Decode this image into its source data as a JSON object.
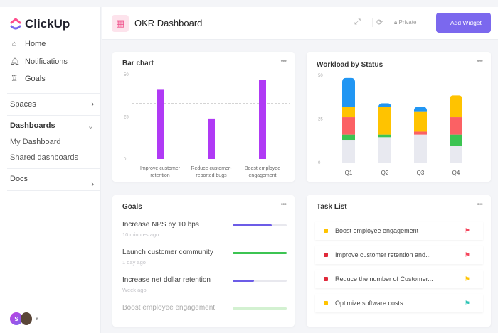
{
  "app": {
    "name": "ClickUp"
  },
  "sidebar": {
    "items": [
      {
        "label": "Home",
        "icon": "home-icon"
      },
      {
        "label": "Notifications",
        "icon": "bell-icon"
      },
      {
        "label": "Goals",
        "icon": "trophy-icon"
      }
    ],
    "spaces": "Spaces",
    "dashboards": "Dashboards",
    "my_dashboard": "My Dashboard",
    "shared_dashboards": "Shared dashboards",
    "docs": "Docs",
    "avatar_initial": "S"
  },
  "header": {
    "title": "OKR Dashboard",
    "privacy": "Private",
    "add_widget": "+ Add Widget",
    "accent": "#7b68ee"
  },
  "chart_data": [
    {
      "type": "bar",
      "title": "Bar chart",
      "categories": [
        "Improve customer retention",
        "Reduce customer-reported bugs",
        "Boost employee engagement"
      ],
      "category_lines": [
        [
          "Improve customer",
          "retention"
        ],
        [
          "Reduce customer-",
          "reported bugs"
        ],
        [
          "Boost employee",
          "engagement"
        ]
      ],
      "values": [
        41,
        24,
        47
      ],
      "ylim": [
        0,
        50
      ],
      "yticks": [
        "0",
        "25",
        "50"
      ],
      "reference_line": 33,
      "color": "#b03af5"
    },
    {
      "type": "bar",
      "stacked": true,
      "title": "Workload by Status",
      "categories": [
        "Q1",
        "Q2",
        "Q3",
        "Q4"
      ],
      "ylim": [
        0,
        50
      ],
      "yticks": [
        "0",
        "25",
        "50"
      ],
      "series": [
        {
          "color": "#e8e9f0",
          "values": [
            13,
            14.5,
            16,
            9.5
          ]
        },
        {
          "color": "#3cc452",
          "values": [
            3,
            1.5,
            0,
            6.5
          ]
        },
        {
          "color": "#fb6164",
          "values": [
            10,
            0,
            1.7,
            10
          ]
        },
        {
          "color": "#ffc300",
          "values": [
            6,
            16,
            11.3,
            12.5
          ]
        },
        {
          "color": "#2196f3",
          "values": [
            16.5,
            2,
            3,
            0
          ]
        }
      ]
    }
  ],
  "goals": {
    "title": "Goals",
    "items": [
      {
        "name": "Increase NPS by 10 bps",
        "time": "10 minutes ago",
        "progress": 72,
        "color": "#6c5ce7"
      },
      {
        "name": "Launch customer community",
        "time": "1 day ago",
        "progress": 100,
        "color": "#3cc452"
      },
      {
        "name": "Increase net dollar retention",
        "time": "Week ago",
        "progress": 40,
        "color": "#6c5ce7"
      },
      {
        "name": "Boost employee engagement",
        "time": "",
        "progress": 100,
        "color": "#9ee29a"
      }
    ]
  },
  "tasks": {
    "title": "Task List",
    "items": [
      {
        "name": "Boost employee engagement",
        "status_color": "#ffc300",
        "flag_color": "#f5455c"
      },
      {
        "name": "Improve customer retention and...",
        "status_color": "#e0293a",
        "flag_color": "#f5455c"
      },
      {
        "name": "Reduce the number of Customer...",
        "status_color": "#e0293a",
        "flag_color": "#ffc300"
      },
      {
        "name": "Optimize software costs",
        "status_color": "#ffc300",
        "flag_color": "#2ec4b6"
      }
    ]
  }
}
